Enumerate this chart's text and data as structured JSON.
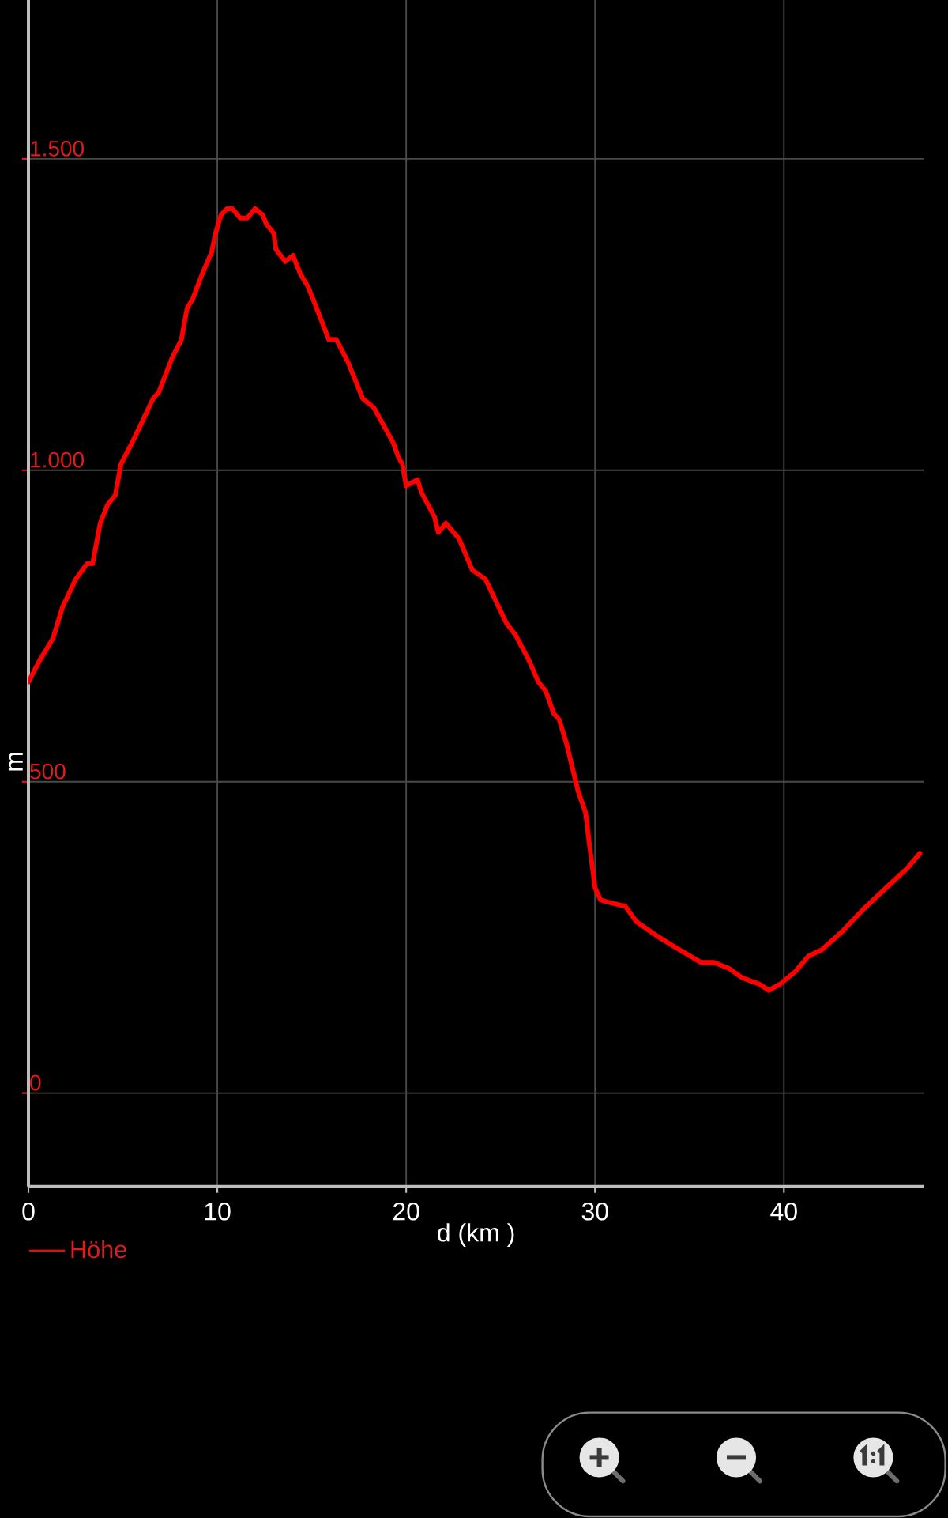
{
  "chart_data": {
    "type": "line",
    "xlabel": "d (km )",
    "ylabel": "m",
    "x": [
      0,
      0.6,
      1.3,
      1.8,
      2.5,
      3.1,
      3.4,
      3.8,
      4.2,
      4.6,
      4.9,
      5.5,
      5.9,
      6.6,
      6.9,
      7.6,
      8.1,
      8.4,
      8.7,
      9.2,
      9.7,
      9.9,
      10.2,
      10.5,
      10.8,
      11.2,
      11.6,
      12.0,
      12.4,
      12.6,
      13.0,
      13.1,
      13.6,
      14.0,
      14.4,
      14.8,
      15.2,
      15.9,
      16.3,
      16.9,
      17.7,
      18.3,
      19.3,
      19.6,
      19.8,
      20.0,
      20.6,
      20.8,
      21.5,
      21.7,
      22.1,
      22.8,
      23.5,
      24.2,
      25.3,
      25.8,
      26.5,
      27.0,
      27.4,
      27.8,
      28.1,
      28.5,
      28.9,
      29.1,
      29.5,
      29.7,
      30.0,
      30.3,
      30.9,
      31.6,
      32.2,
      33.4,
      34.2,
      35.6,
      36.3,
      37.1,
      37.8,
      38.7,
      39.2,
      39.8,
      40.6,
      41.3,
      42.0,
      43.1,
      44.2,
      45.6,
      46.5,
      47.2
    ],
    "series": [
      {
        "name": "Höhe",
        "color": "#ff0000",
        "values": [
          660,
          695,
          730,
          780,
          825,
          850,
          850,
          915,
          945,
          960,
          1010,
          1045,
          1070,
          1115,
          1125,
          1180,
          1210,
          1260,
          1275,
          1315,
          1350,
          1380,
          1410,
          1420,
          1420,
          1405,
          1405,
          1420,
          1410,
          1395,
          1380,
          1355,
          1335,
          1345,
          1315,
          1295,
          1265,
          1210,
          1210,
          1175,
          1115,
          1100,
          1045,
          1020,
          1010,
          975,
          985,
          965,
          925,
          900,
          915,
          890,
          840,
          825,
          755,
          735,
          695,
          660,
          645,
          610,
          600,
          560,
          510,
          485,
          450,
          400,
          330,
          310,
          305,
          300,
          275,
          250,
          235,
          210,
          210,
          200,
          185,
          175,
          165,
          175,
          195,
          220,
          230,
          260,
          295,
          335,
          360,
          385
        ]
      }
    ],
    "xlim": [
      0,
      47.4
    ],
    "ylim": [
      -150,
      1755
    ],
    "xticks": [
      0,
      10,
      20,
      30,
      40
    ],
    "yticks": [
      0,
      500,
      {
        "value": 1000,
        "label": "1.000"
      },
      {
        "value": 1500,
        "label": "1.500"
      }
    ],
    "grid": true,
    "legend": "bottom left",
    "line_style": "solid"
  }
}
